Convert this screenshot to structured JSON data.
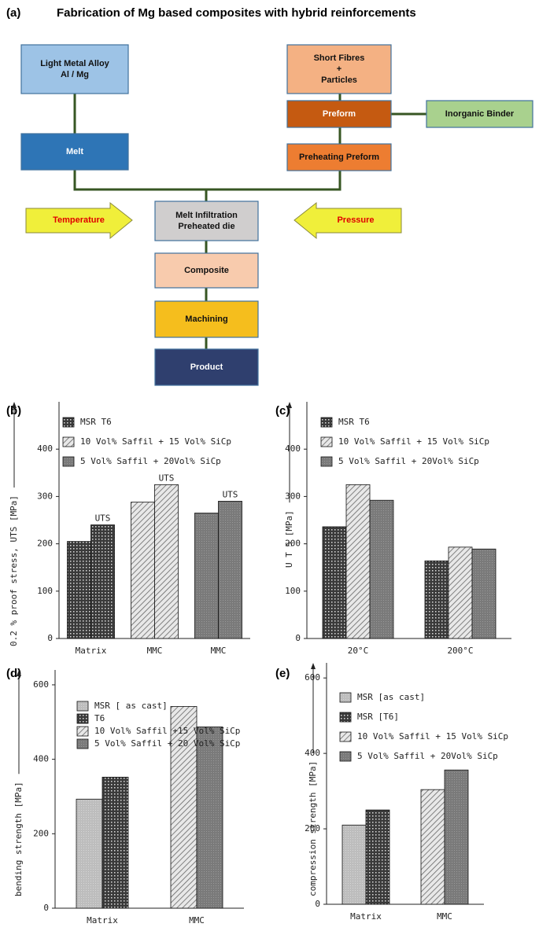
{
  "diagram": {
    "label": "(a)",
    "title": "Fabrication of Mg based composites with hybrid reinforcements",
    "nodes": [
      {
        "lines": [
          "Light Metal Alloy",
          "Al / Mg"
        ]
      },
      {
        "lines": [
          "Short Fibres",
          "+",
          "Particles"
        ]
      },
      {
        "lines": [
          "Preform"
        ]
      },
      {
        "lines": [
          "Inorganic Binder"
        ]
      },
      {
        "lines": [
          "Melt"
        ]
      },
      {
        "lines": [
          "Preheating Preform"
        ]
      },
      {
        "lines": [
          "Temperature"
        ]
      },
      {
        "lines": [
          "Melt Infiltration",
          "Preheated die"
        ]
      },
      {
        "lines": [
          "Pressure"
        ]
      },
      {
        "lines": [
          "Composite"
        ]
      },
      {
        "lines": [
          "Machining"
        ]
      },
      {
        "lines": [
          "Product"
        ]
      }
    ]
  },
  "chart_data": [
    {
      "type": "bar",
      "label": "(b)",
      "y_label": "0.2 % proof stress, UTS [MPa]",
      "categories": [
        "Matrix",
        "MMC",
        "MMC"
      ],
      "annotations": [
        "UTS",
        "UTS",
        "UTS"
      ],
      "ylim": [
        0,
        500
      ],
      "yticks": [
        0,
        100,
        200,
        300,
        400
      ],
      "series": [
        {
          "name": "MSR T6",
          "pattern": "cross",
          "values": [
            205,
            null,
            null
          ],
          "uts": [
            240,
            null,
            null
          ]
        },
        {
          "name": "10 Vol% Saffil + 15 Vol% SiCp",
          "pattern": "hatch",
          "values": [
            null,
            288,
            null
          ],
          "uts": [
            null,
            325,
            null
          ]
        },
        {
          "name": "5 Vol% Saffil + 20Vol% SiCp",
          "pattern": "gray",
          "values": [
            null,
            null,
            265
          ],
          "uts": [
            null,
            null,
            290
          ]
        }
      ]
    },
    {
      "type": "bar",
      "label": "(c)",
      "y_label": "U T S  [MPa]",
      "categories": [
        "20°C",
        "200°C"
      ],
      "ylim": [
        0,
        500
      ],
      "yticks": [
        0,
        100,
        200,
        300,
        400
      ],
      "series": [
        {
          "name": "MSR T6",
          "pattern": "cross",
          "values": [
            236,
            164
          ]
        },
        {
          "name": "10 Vol% Saffil + 15 Vol% SiCp",
          "pattern": "hatch",
          "values": [
            325,
            193
          ]
        },
        {
          "name": "5 Vol% Saffil + 20Vol% SiCp",
          "pattern": "gray",
          "values": [
            292,
            189
          ]
        }
      ]
    },
    {
      "type": "bar",
      "label": "(d)",
      "y_label": "bending    strength  [MPa]",
      "categories": [
        "Matrix",
        "MMC"
      ],
      "ylim": [
        0,
        640
      ],
      "yticks": [
        0,
        200,
        400,
        600
      ],
      "series": [
        {
          "name": "MSR  [ as cast]",
          "pattern": "light",
          "values": [
            293,
            null
          ]
        },
        {
          "name": "T6",
          "pattern": "cross",
          "values": [
            352,
            null
          ]
        },
        {
          "name": "10 Vol% Saffil +15 Vol% SiCp",
          "pattern": "hatch",
          "values": [
            null,
            542
          ]
        },
        {
          "name": "5 Vol% Saffil + 20 Vol% SiCp",
          "pattern": "gray",
          "values": [
            null,
            487
          ]
        }
      ]
    },
    {
      "type": "bar",
      "label": "(e)",
      "y_label": "compression  strength  [MPa]",
      "categories": [
        "Matrix",
        "MMC"
      ],
      "ylim": [
        0,
        640
      ],
      "yticks": [
        0,
        200,
        400,
        600
      ],
      "series": [
        {
          "name": "MSR [as cast]",
          "pattern": "light",
          "values": [
            210,
            null
          ]
        },
        {
          "name": "MSR [T6]",
          "pattern": "cross",
          "values": [
            250,
            null
          ]
        },
        {
          "name": "10 Vol% Saffil + 15 Vol% SiCp",
          "pattern": "hatch",
          "values": [
            null,
            304
          ]
        },
        {
          "name": "5 Vol% Saffil + 20Vol% SiCp",
          "pattern": "gray",
          "values": [
            null,
            356
          ]
        }
      ]
    }
  ]
}
